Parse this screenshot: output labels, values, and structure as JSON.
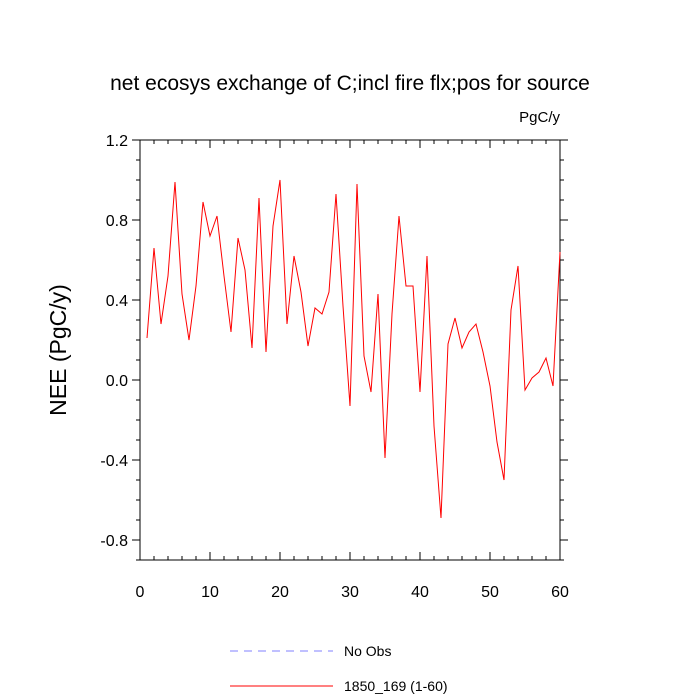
{
  "chart_data": {
    "type": "line",
    "title": "net ecosys exchange of C;incl fire flx;pos for source",
    "units": "PgC/y",
    "xlabel": "",
    "ylabel": "NEE  (PgC/y)",
    "xlim": [
      0,
      60
    ],
    "ylim": [
      -0.9,
      1.2
    ],
    "xticks": [
      0,
      10,
      20,
      30,
      40,
      50,
      60
    ],
    "xtick_labels": [
      "0",
      "10",
      "20",
      "30",
      "40",
      "50",
      "60"
    ],
    "yticks": [
      -0.8,
      -0.4,
      0.0,
      0.4,
      0.8,
      1.2
    ],
    "ytick_labels": [
      "-0.8",
      "-0.4",
      "0.0",
      "0.4",
      "0.8",
      "1.2"
    ],
    "grid": false,
    "legend_position": "bottom",
    "series": [
      {
        "name": "No Obs",
        "color": "#8080ff",
        "style": "dashed",
        "x": [],
        "values": []
      },
      {
        "name": "1850_169 (1-60)",
        "color": "#ff0000",
        "style": "solid",
        "x": [
          1,
          2,
          3,
          4,
          5,
          6,
          7,
          8,
          9,
          10,
          11,
          12,
          13,
          14,
          15,
          16,
          17,
          18,
          19,
          20,
          21,
          22,
          23,
          24,
          25,
          26,
          27,
          28,
          29,
          30,
          31,
          32,
          33,
          34,
          35,
          36,
          37,
          38,
          39,
          40,
          41,
          42,
          43,
          44,
          45,
          46,
          47,
          48,
          49,
          50,
          51,
          52,
          53,
          54,
          55,
          56,
          57,
          58,
          59,
          60
        ],
        "values": [
          0.21,
          0.66,
          0.28,
          0.52,
          0.99,
          0.43,
          0.2,
          0.47,
          0.89,
          0.72,
          0.82,
          0.52,
          0.24,
          0.71,
          0.55,
          0.16,
          0.91,
          0.14,
          0.77,
          1.0,
          0.28,
          0.62,
          0.44,
          0.17,
          0.36,
          0.33,
          0.44,
          0.93,
          0.37,
          -0.13,
          0.98,
          0.12,
          -0.06,
          0.43,
          -0.39,
          0.33,
          0.82,
          0.47,
          0.47,
          -0.06,
          0.62,
          -0.23,
          -0.69,
          0.18,
          0.31,
          0.16,
          0.24,
          0.28,
          0.14,
          -0.03,
          -0.31,
          -0.5,
          0.35,
          0.57,
          -0.05,
          0.01,
          0.04,
          0.11,
          -0.03,
          0.64
        ]
      }
    ]
  }
}
